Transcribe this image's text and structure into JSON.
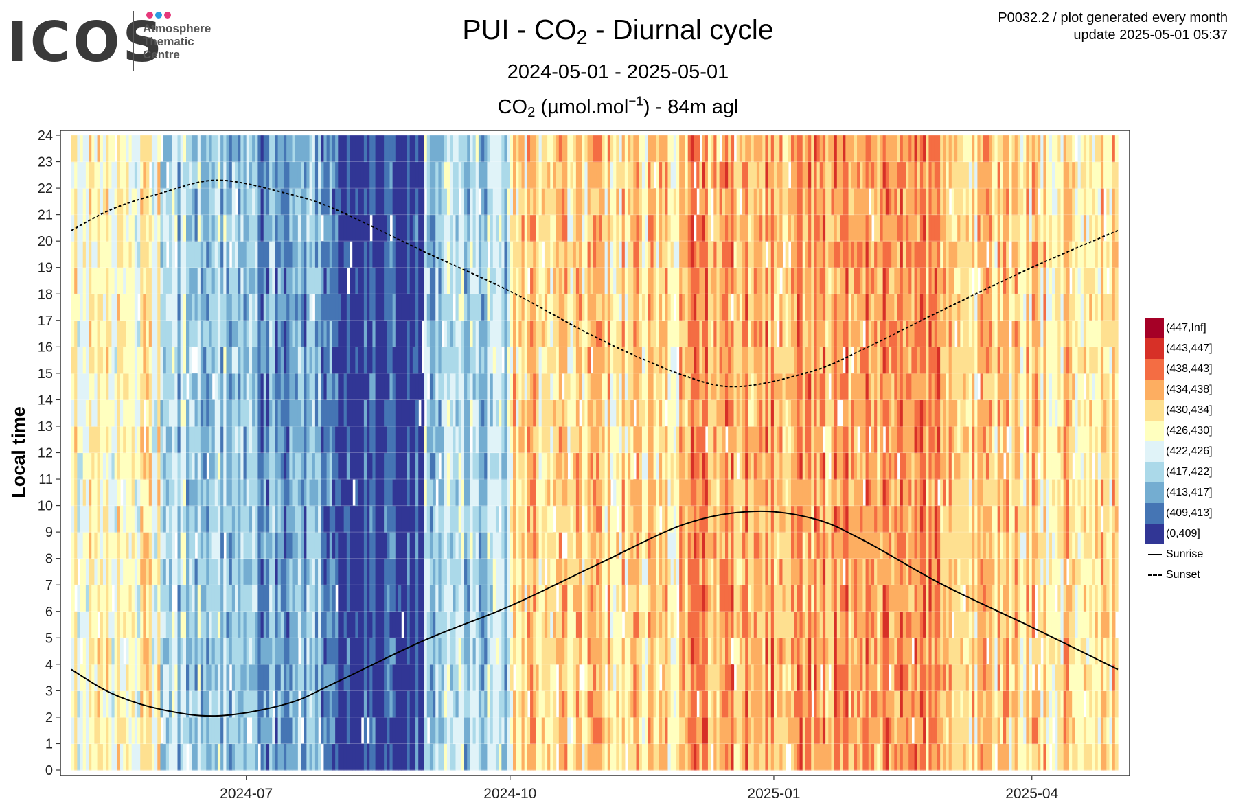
{
  "logo": {
    "wordmark": "ICOS",
    "subtitle_lines": [
      "Atmosphere",
      "Thematic",
      "Centre"
    ],
    "dot_colors": [
      "#e6387a",
      "#2b9be0",
      "#e6387a"
    ]
  },
  "header": {
    "plot_id_line": "P0032.2 / plot generated every month",
    "update_line": "update  2025-05-01 05:37"
  },
  "titles": {
    "station": "PUI",
    "species_prefix": "CO",
    "species_sub": "2",
    "kind": "Diurnal cycle",
    "date_range": "2024-05-01 - 2025-05-01",
    "unit_prefix": "(µmol.mol",
    "unit_sup": "−1",
    "unit_suffix": ") - 84m agl"
  },
  "chart_data": {
    "type": "heatmap",
    "ylabel": "Local time",
    "xlabel": "",
    "x_start": "2024-05-01",
    "x_end": "2025-05-01",
    "x_ticks": [
      "2024-07",
      "2024-10",
      "2025-01",
      "2025-04"
    ],
    "x_tick_dates": [
      "2024-07-01",
      "2024-10-01",
      "2025-01-01",
      "2025-04-01"
    ],
    "ylim": [
      0,
      24
    ],
    "y_ticks": [
      0,
      1,
      2,
      3,
      4,
      5,
      6,
      7,
      8,
      9,
      10,
      11,
      12,
      13,
      14,
      15,
      16,
      17,
      18,
      19,
      20,
      21,
      22,
      23,
      24
    ],
    "grid": true,
    "legend_position": "right",
    "bins": [
      {
        "label": "(447,Inf]",
        "color": "#a50026"
      },
      {
        "label": "(443,447]",
        "color": "#d73027"
      },
      {
        "label": "(438,443]",
        "color": "#f46d43"
      },
      {
        "label": "(434,438]",
        "color": "#fdae61"
      },
      {
        "label": "(430,434]",
        "color": "#fee090"
      },
      {
        "label": "(426,430]",
        "color": "#ffffbf"
      },
      {
        "label": "(422,426]",
        "color": "#e0f3f8"
      },
      {
        "label": "(417,422]",
        "color": "#abd9e9"
      },
      {
        "label": "(413,417]",
        "color": "#74add1"
      },
      {
        "label": "(409,413]",
        "color": "#4575b4"
      },
      {
        "label": "(0,409]",
        "color": "#313695"
      }
    ],
    "monthly_typical_bin": [
      {
        "month": "2024-05",
        "bin": "(426,430]"
      },
      {
        "month": "2024-06",
        "bin": "(417,422]"
      },
      {
        "month": "2024-07",
        "bin": "(413,417]"
      },
      {
        "month": "2024-08",
        "bin": "(0,409]"
      },
      {
        "month": "2024-09",
        "bin": "(417,422]"
      },
      {
        "month": "2024-10",
        "bin": "(430,434]"
      },
      {
        "month": "2024-11",
        "bin": "(430,434]"
      },
      {
        "month": "2024-12",
        "bin": "(434,438]"
      },
      {
        "month": "2025-01",
        "bin": "(434,438]"
      },
      {
        "month": "2025-02",
        "bin": "(434,438]"
      },
      {
        "month": "2025-03",
        "bin": "(430,434]"
      },
      {
        "month": "2025-04",
        "bin": "(430,434]"
      }
    ],
    "series": [
      {
        "name": "Sunrise",
        "style": "solid",
        "points": [
          {
            "date": "2024-05-01",
            "hour": 3.8
          },
          {
            "date": "2024-05-15",
            "hour": 2.9
          },
          {
            "date": "2024-06-01",
            "hour": 2.3
          },
          {
            "date": "2024-06-21",
            "hour": 2.05
          },
          {
            "date": "2024-07-15",
            "hour": 2.5
          },
          {
            "date": "2024-08-01",
            "hour": 3.3
          },
          {
            "date": "2024-09-01",
            "hour": 4.9
          },
          {
            "date": "2024-10-01",
            "hour": 6.2
          },
          {
            "date": "2024-11-01",
            "hour": 7.8
          },
          {
            "date": "2024-12-01",
            "hour": 9.3
          },
          {
            "date": "2024-12-25",
            "hour": 9.78
          },
          {
            "date": "2025-01-15",
            "hour": 9.5
          },
          {
            "date": "2025-02-01",
            "hour": 8.7
          },
          {
            "date": "2025-03-01",
            "hour": 7.0
          },
          {
            "date": "2025-04-01",
            "hour": 5.4
          },
          {
            "date": "2025-05-01",
            "hour": 3.8
          }
        ]
      },
      {
        "name": "Sunset",
        "style": "dashed",
        "points": [
          {
            "date": "2024-05-01",
            "hour": 20.4
          },
          {
            "date": "2024-05-15",
            "hour": 21.2
          },
          {
            "date": "2024-06-01",
            "hour": 21.8
          },
          {
            "date": "2024-06-21",
            "hour": 22.3
          },
          {
            "date": "2024-07-15",
            "hour": 21.8
          },
          {
            "date": "2024-08-01",
            "hour": 21.2
          },
          {
            "date": "2024-09-01",
            "hour": 19.6
          },
          {
            "date": "2024-10-01",
            "hour": 18.1
          },
          {
            "date": "2024-11-01",
            "hour": 16.3
          },
          {
            "date": "2024-12-01",
            "hour": 14.9
          },
          {
            "date": "2024-12-20",
            "hour": 14.5
          },
          {
            "date": "2025-01-15",
            "hour": 15.1
          },
          {
            "date": "2025-02-01",
            "hour": 15.9
          },
          {
            "date": "2025-03-01",
            "hour": 17.4
          },
          {
            "date": "2025-04-01",
            "hour": 19.0
          },
          {
            "date": "2025-05-01",
            "hour": 20.4
          }
        ]
      }
    ]
  }
}
